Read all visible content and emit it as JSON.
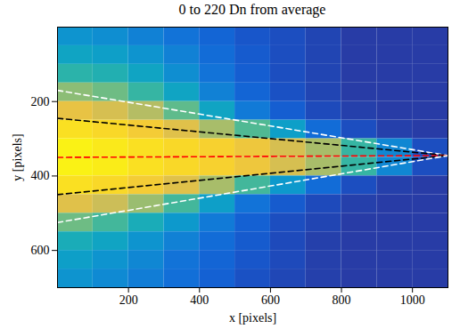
{
  "chart_data": {
    "type": "heatmap",
    "title": "0 to 220 Dn from average",
    "x_label": "x [pixels]",
    "y_label": "y [pixels]",
    "xlim": [
      0,
      1100
    ],
    "ylim": [
      0,
      700
    ],
    "xticks": [
      200,
      400,
      600,
      800,
      1000
    ],
    "yticks": [
      200,
      400,
      600
    ],
    "zlim": [
      0,
      220
    ],
    "x_bins": [
      0,
      100,
      200,
      300,
      400,
      500,
      600,
      700,
      800,
      900,
      1000,
      1100
    ],
    "y_bins": [
      0,
      50,
      100,
      150,
      200,
      250,
      300,
      350,
      400,
      450,
      500,
      550,
      600,
      650,
      700
    ],
    "cells": [
      [
        70,
        65,
        55,
        45,
        35,
        25,
        20,
        15,
        10,
        10,
        10
      ],
      [
        85,
        80,
        70,
        55,
        40,
        28,
        20,
        15,
        10,
        10,
        10
      ],
      [
        105,
        100,
        85,
        65,
        45,
        30,
        20,
        15,
        10,
        10,
        10
      ],
      [
        140,
        130,
        110,
        85,
        55,
        35,
        22,
        15,
        10,
        10,
        10
      ],
      [
        180,
        170,
        155,
        125,
        85,
        50,
        30,
        18,
        12,
        10,
        10
      ],
      [
        205,
        200,
        190,
        175,
        150,
        120,
        80,
        40,
        20,
        12,
        10
      ],
      [
        215,
        210,
        205,
        200,
        195,
        185,
        170,
        150,
        110,
        60,
        20
      ],
      [
        215,
        212,
        205,
        200,
        195,
        185,
        170,
        150,
        110,
        60,
        20
      ],
      [
        205,
        200,
        190,
        175,
        150,
        115,
        75,
        40,
        20,
        12,
        10
      ],
      [
        175,
        165,
        145,
        115,
        80,
        45,
        28,
        18,
        12,
        10,
        10
      ],
      [
        130,
        115,
        95,
        75,
        50,
        32,
        20,
        15,
        10,
        10,
        10
      ],
      [
        95,
        85,
        70,
        55,
        40,
        28,
        18,
        12,
        10,
        10,
        10
      ],
      [
        80,
        70,
        60,
        45,
        35,
        25,
        18,
        12,
        10,
        10,
        10
      ],
      [
        70,
        62,
        52,
        42,
        32,
        22,
        16,
        12,
        10,
        10,
        10
      ]
    ],
    "lines": [
      {
        "color": "#ffffff",
        "line_style": "dashed",
        "x": [
          0,
          1100
        ],
        "y": [
          170,
          345
        ]
      },
      {
        "color": "#000000",
        "line_style": "dashed",
        "x": [
          0,
          1100
        ],
        "y": [
          245,
          345
        ]
      },
      {
        "color": "#ff0000",
        "line_style": "dashed",
        "x": [
          0,
          1100
        ],
        "y": [
          350,
          345
        ]
      },
      {
        "color": "#000000",
        "line_style": "dashed",
        "x": [
          0,
          1100
        ],
        "y": [
          450,
          345
        ]
      },
      {
        "color": "#ffffff",
        "line_style": "dashed",
        "x": [
          0,
          1100
        ],
        "y": [
          525,
          345
        ]
      }
    ]
  }
}
